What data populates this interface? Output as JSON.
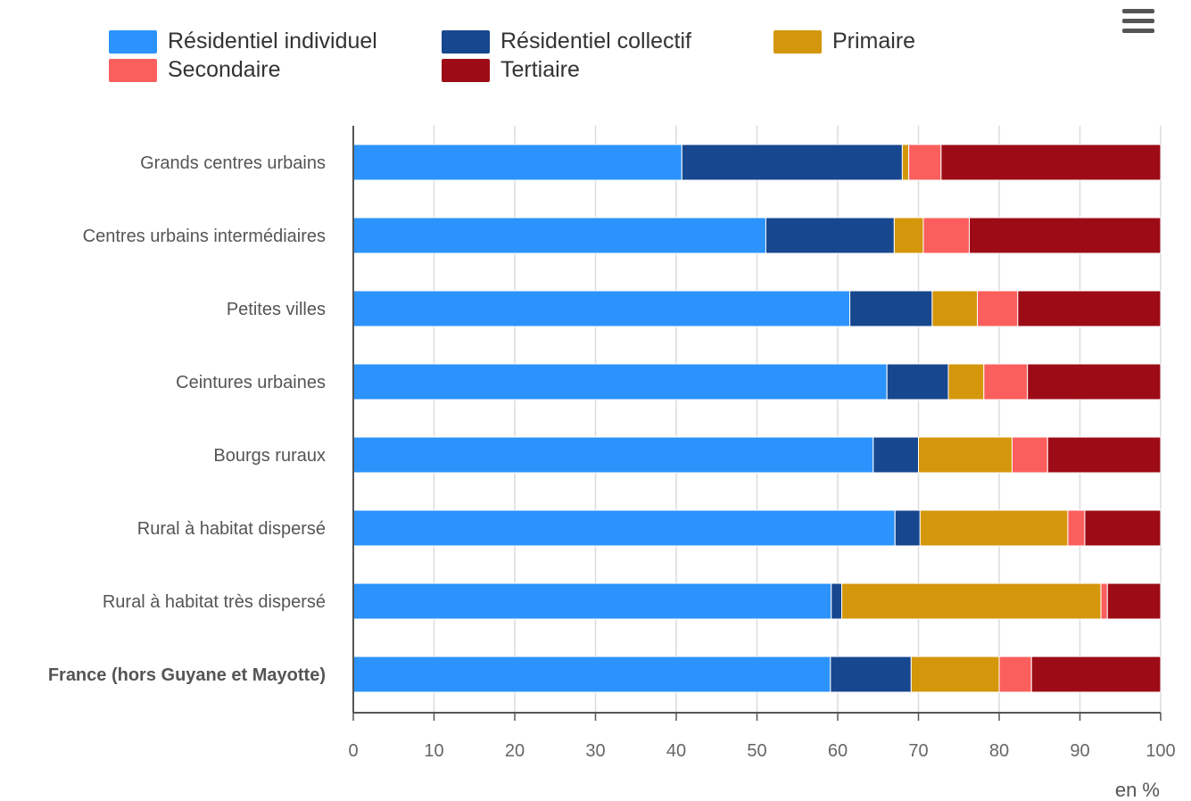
{
  "chart_data": {
    "type": "bar",
    "orientation": "horizontal",
    "stacked": true,
    "categories": [
      "Grands centres urbains",
      "Centres urbains intermédiaires",
      "Petites villes",
      "Ceintures urbaines",
      "Bourgs ruraux",
      "Rural à habitat dispersé",
      "Rural à habitat très dispersé",
      "France (hors Guyane et Mayotte)"
    ],
    "emphasized_category": "France (hors Guyane et Mayotte)",
    "series": [
      {
        "name": "Résidentiel individuel",
        "color": "#2b93fb",
        "values": [
          40.7,
          51.1,
          61.5,
          66.1,
          64.4,
          67.1,
          59.2,
          59.1
        ]
      },
      {
        "name": "Résidentiel collectif",
        "color": "#17478f",
        "values": [
          27.3,
          15.9,
          10.2,
          7.6,
          5.6,
          3.1,
          1.3,
          10.0
        ]
      },
      {
        "name": "Primaire",
        "color": "#d4970b",
        "values": [
          0.8,
          3.6,
          5.6,
          4.4,
          11.6,
          18.3,
          32.1,
          10.9
        ]
      },
      {
        "name": "Secondaire",
        "color": "#fb5f5d",
        "values": [
          4.0,
          5.7,
          5.0,
          5.4,
          4.4,
          2.1,
          0.8,
          4.0
        ]
      },
      {
        "name": "Tertiaire",
        "color": "#9d0c16",
        "values": [
          27.2,
          23.7,
          17.7,
          16.5,
          14.0,
          9.4,
          6.6,
          16.0
        ]
      }
    ],
    "xlim": [
      0,
      100
    ],
    "xticks": [
      0,
      10,
      20,
      30,
      40,
      50,
      60,
      70,
      80,
      90,
      100
    ],
    "xlabel": "en %",
    "grid": true,
    "legend_position": "top"
  },
  "ui": {
    "menu_icon": "hamburger-menu-icon"
  }
}
